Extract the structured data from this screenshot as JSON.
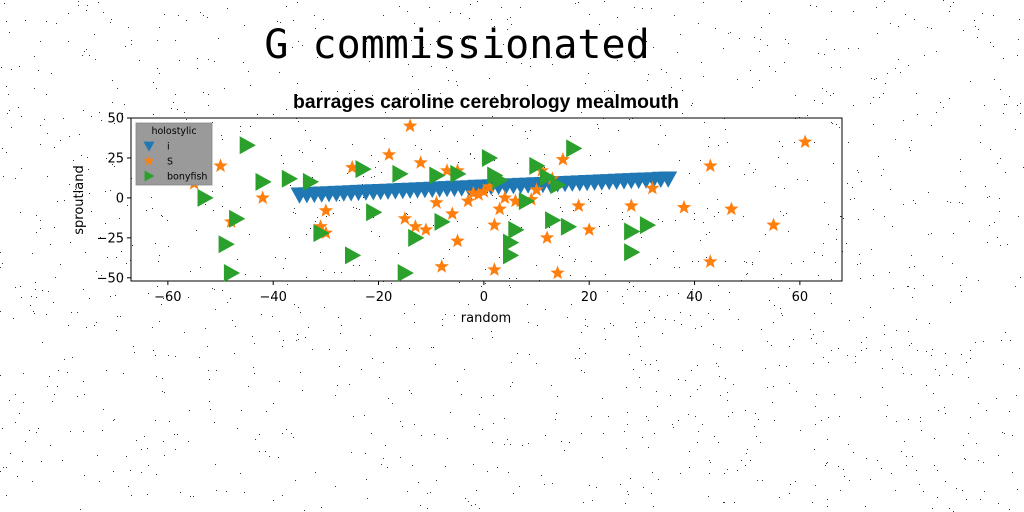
{
  "page": {
    "title": "G commissionated"
  },
  "chart_data": {
    "type": "scatter",
    "title": "barrages caroline cerebrology mealmouth",
    "xlabel": "random",
    "ylabel": "sproutland",
    "xlim": [
      -67,
      68
    ],
    "ylim": [
      -52,
      50
    ],
    "xticks": [
      -60,
      -40,
      -20,
      0,
      20,
      40,
      60
    ],
    "yticks": [
      -50,
      -25,
      0,
      25,
      50
    ],
    "grid": false,
    "legend": {
      "title": "holostylic",
      "placement": "top-left"
    },
    "series": [
      {
        "name": "i",
        "marker": "triangle-down",
        "color": "#1f77b4",
        "x": [
          -35.0,
          -33.6,
          -32.2,
          -30.8,
          -29.4,
          -28.0,
          -26.6,
          -25.2,
          -23.8,
          -22.4,
          -21.0,
          -19.6,
          -18.2,
          -16.8,
          -15.4,
          -14.0,
          -12.6,
          -11.2,
          -9.8,
          -8.4,
          -7.0,
          -5.6,
          -4.2,
          -2.8,
          -1.4,
          0.0,
          1.4,
          2.8,
          4.2,
          5.6,
          7.0,
          8.4,
          9.8,
          11.2,
          12.6,
          14.0,
          15.4,
          16.8,
          18.2,
          19.6,
          21.0,
          22.4,
          23.8,
          25.2,
          26.6,
          28.0,
          29.4,
          30.8,
          32.2,
          33.6,
          35.0
        ],
        "y": [
          2.0,
          2.2,
          2.4,
          2.6,
          2.8,
          3.0,
          3.2,
          3.4,
          3.6,
          3.8,
          4.0,
          4.2,
          4.4,
          4.6,
          4.8,
          5.0,
          5.2,
          5.4,
          5.6,
          5.8,
          6.0,
          6.2,
          6.4,
          6.6,
          6.8,
          7.0,
          7.2,
          7.4,
          7.6,
          7.8,
          8.0,
          8.2,
          8.4,
          8.6,
          8.8,
          9.0,
          9.2,
          9.4,
          9.6,
          9.8,
          10.0,
          10.2,
          10.4,
          10.6,
          10.8,
          11.0,
          11.2,
          11.4,
          11.6,
          11.8,
          12.0
        ]
      },
      {
        "name": "S",
        "marker": "star",
        "color": "#ff7f0e",
        "points": [
          [
            -14,
            45
          ],
          [
            61,
            35
          ],
          [
            43,
            20
          ],
          [
            -55,
            9
          ],
          [
            -60,
            12
          ],
          [
            -50,
            20
          ],
          [
            -48,
            -15
          ],
          [
            -42,
            0
          ],
          [
            -30,
            -8
          ],
          [
            -31,
            -18
          ],
          [
            -30,
            -22
          ],
          [
            -25,
            19
          ],
          [
            -18,
            27
          ],
          [
            -15,
            -13
          ],
          [
            -13,
            -18
          ],
          [
            -11,
            -20
          ],
          [
            -12,
            22
          ],
          [
            -9,
            -3
          ],
          [
            -7,
            17
          ],
          [
            -5,
            17
          ],
          [
            -6,
            -10
          ],
          [
            -5,
            -27
          ],
          [
            -3,
            -2
          ],
          [
            -2,
            3
          ],
          [
            0,
            4
          ],
          [
            2,
            -45
          ],
          [
            2,
            -17
          ],
          [
            3,
            -7
          ],
          [
            4,
            0
          ],
          [
            6,
            -2
          ],
          [
            9,
            -1
          ],
          [
            10,
            5
          ],
          [
            11,
            17
          ],
          [
            12,
            -25
          ],
          [
            14,
            -47
          ],
          [
            15,
            24
          ],
          [
            18,
            -5
          ],
          [
            20,
            -20
          ],
          [
            28,
            -5
          ],
          [
            32,
            6
          ],
          [
            38,
            -6
          ],
          [
            43,
            -40
          ],
          [
            47,
            -7
          ],
          [
            55,
            -17
          ],
          [
            -8,
            -43
          ],
          [
            1,
            7
          ],
          [
            13,
            12
          ],
          [
            7,
            -2
          ],
          [
            -1,
            2
          ]
        ]
      },
      {
        "name": "bonyfish",
        "marker": "triangle-right",
        "color": "#2ca02c",
        "points": [
          [
            -45,
            33
          ],
          [
            -53,
            0
          ],
          [
            -42,
            10
          ],
          [
            -37,
            12
          ],
          [
            -33,
            10
          ],
          [
            -47,
            -13
          ],
          [
            -49,
            -29
          ],
          [
            -48,
            -47
          ],
          [
            -23,
            18
          ],
          [
            -21,
            -9
          ],
          [
            -15,
            -47
          ],
          [
            -16,
            15
          ],
          [
            -8,
            -15
          ],
          [
            -5,
            15
          ],
          [
            -25,
            -36
          ],
          [
            -31,
            -22
          ],
          [
            -9,
            14
          ],
          [
            -13,
            -25
          ],
          [
            1,
            25
          ],
          [
            2,
            14
          ],
          [
            3,
            11
          ],
          [
            5,
            -28
          ],
          [
            5,
            -36
          ],
          [
            6,
            -20
          ],
          [
            8,
            -2
          ],
          [
            10,
            20
          ],
          [
            12,
            13
          ],
          [
            13,
            -14
          ],
          [
            14,
            8
          ],
          [
            16,
            -18
          ],
          [
            17,
            31
          ],
          [
            28,
            -21
          ],
          [
            28,
            -34
          ],
          [
            31,
            -17
          ]
        ]
      }
    ]
  }
}
